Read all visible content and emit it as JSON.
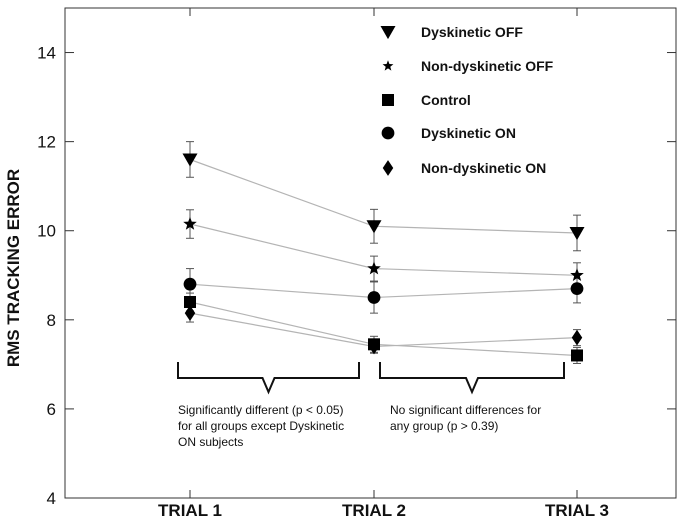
{
  "chart_data": {
    "type": "line",
    "title": "",
    "xlabel": "",
    "ylabel": "RMS TRACKING ERROR",
    "categories": [
      "TRIAL 1",
      "TRIAL 2",
      "TRIAL 3"
    ],
    "ylim": [
      4,
      15
    ],
    "yticks": [
      4,
      6,
      8,
      10,
      12,
      14
    ],
    "grid": false,
    "legend_position": "top-right",
    "line_color": "#b4b4b4",
    "marker_color": "#000000",
    "series": [
      {
        "name": "Dyskinetic OFF",
        "marker": "triangle-down",
        "values": [
          11.6,
          10.1,
          9.95
        ],
        "errors": [
          0.4,
          0.38,
          0.4
        ]
      },
      {
        "name": "Non-dyskinetic OFF",
        "marker": "star",
        "values": [
          10.15,
          9.15,
          9.0
        ],
        "errors": [
          0.32,
          0.28,
          0.28
        ]
      },
      {
        "name": "Control",
        "marker": "square",
        "values": [
          8.4,
          7.45,
          7.2
        ],
        "errors": [
          0.2,
          0.18,
          0.18
        ]
      },
      {
        "name": "Dyskinetic ON",
        "marker": "circle",
        "values": [
          8.8,
          8.5,
          8.7
        ],
        "errors": [
          0.35,
          0.35,
          0.32
        ]
      },
      {
        "name": "Non-dyskinetic ON",
        "marker": "diamond",
        "values": [
          8.15,
          7.4,
          7.6
        ],
        "errors": [
          0.2,
          0.15,
          0.18
        ]
      }
    ],
    "annotations": [
      {
        "lines": [
          "Significantly different (p < 0.05)",
          "for all groups except Dyskinetic",
          "ON subjects"
        ],
        "from_category": 0,
        "to_category": 1
      },
      {
        "lines": [
          "No significant differences for",
          "any group (p > 0.39)"
        ],
        "from_category": 1,
        "to_category": 2
      }
    ]
  }
}
